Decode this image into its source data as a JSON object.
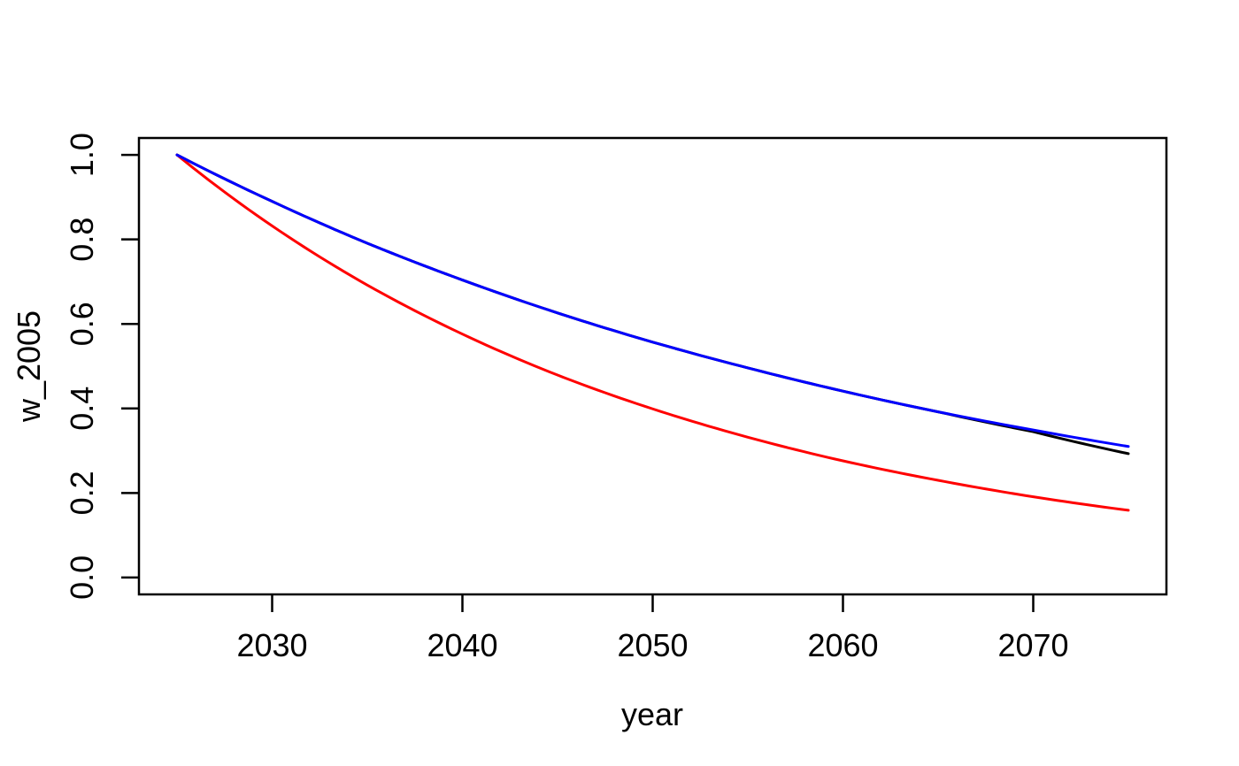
{
  "chart_data": {
    "type": "line",
    "title": "",
    "xlabel": "year",
    "ylabel": "w_2005",
    "x_ticks": [
      "2030",
      "2040",
      "2050",
      "2060",
      "2070"
    ],
    "y_ticks": [
      "0.0",
      "0.2",
      "0.4",
      "0.6",
      "0.8",
      "1.0"
    ],
    "xlim": [
      2023,
      2077
    ],
    "ylim": [
      -0.04,
      1.04
    ],
    "grid": false,
    "legend": null,
    "x": [
      2025,
      2030,
      2035,
      2040,
      2045,
      2050,
      2055,
      2060,
      2065,
      2070,
      2075
    ],
    "series": [
      {
        "name": "black-line",
        "color": "#000000",
        "values": [
          1.0,
          0.89,
          0.791,
          0.704,
          0.626,
          0.557,
          0.496,
          0.441,
          0.392,
          0.345,
          0.293
        ]
      },
      {
        "name": "red-line",
        "color": "#ff0000",
        "values": [
          1.0,
          0.832,
          0.692,
          0.576,
          0.479,
          0.399,
          0.332,
          0.276,
          0.23,
          0.191,
          0.159
        ]
      },
      {
        "name": "blue-line",
        "color": "#0000ff",
        "values": [
          1.0,
          0.89,
          0.791,
          0.704,
          0.626,
          0.557,
          0.496,
          0.441,
          0.392,
          0.349,
          0.31
        ]
      }
    ],
    "axis_color": "#000000",
    "background_color": "#ffffff"
  }
}
